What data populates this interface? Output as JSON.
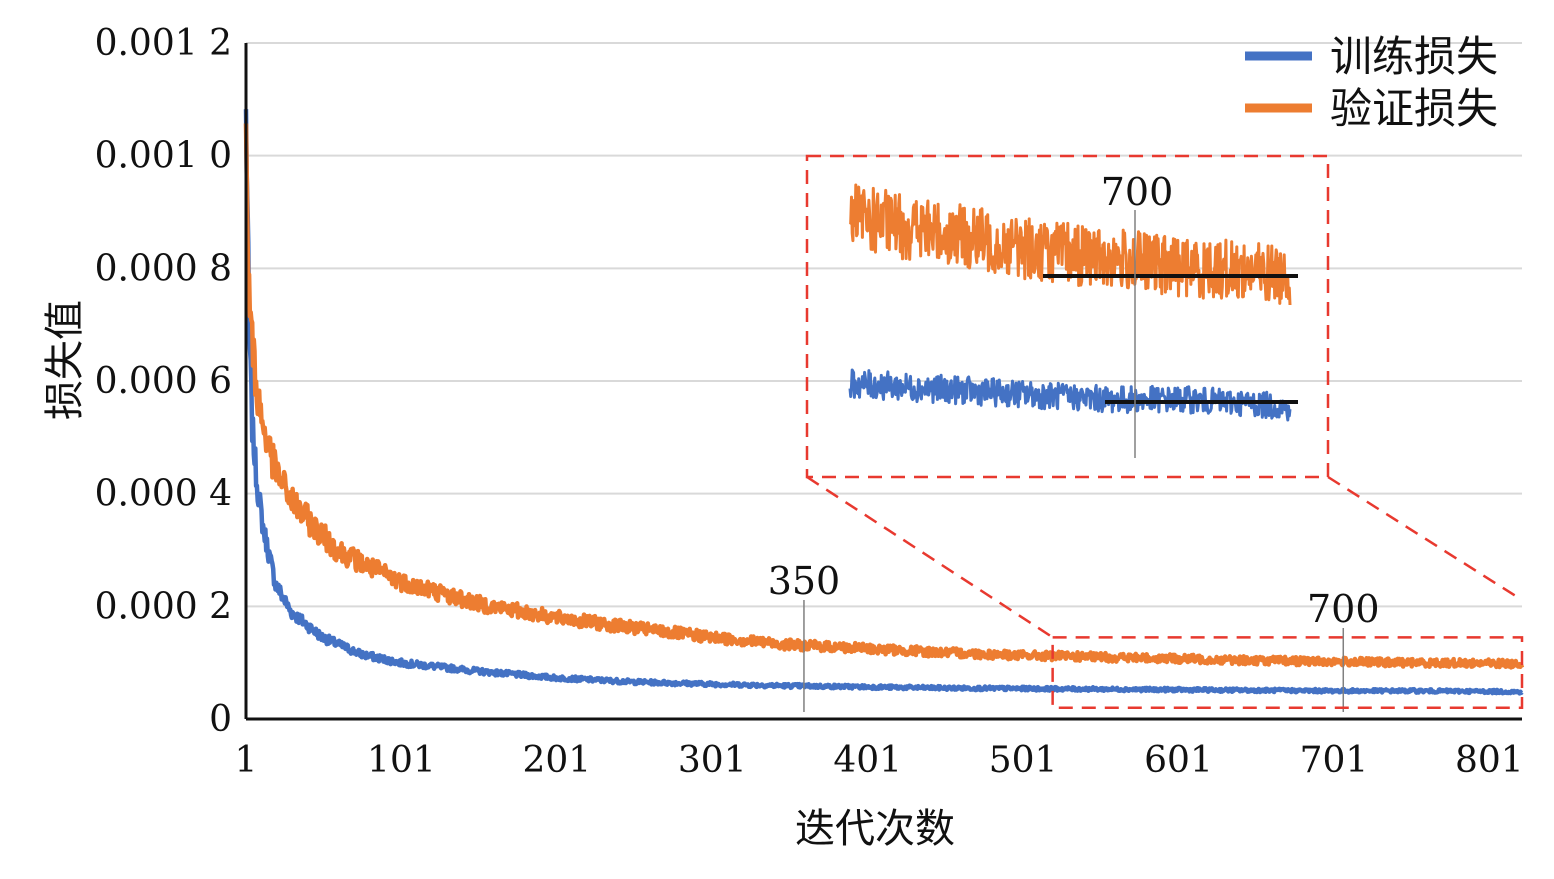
{
  "chart_data": {
    "type": "line",
    "title": "",
    "xlabel": "迭代次数",
    "ylabel": "损失值",
    "xlim": [
      1,
      822
    ],
    "ylim": [
      0,
      0.0012
    ],
    "x_ticks": [
      "1",
      "101",
      "201",
      "301",
      "401",
      "501",
      "601",
      "701",
      "801"
    ],
    "y_ticks": [
      "0",
      "0.000 2",
      "0.000 4",
      "0.000 6",
      "0.000 8",
      "0.001 0",
      "0.001 2"
    ],
    "grid": true,
    "legend_position": "top-right",
    "series": [
      {
        "name": "训练损失",
        "color": "#4472C4",
        "x": [
          1,
          2,
          3,
          5,
          8,
          12,
          20,
          30,
          50,
          75,
          100,
          150,
          200,
          250,
          300,
          350,
          400,
          450,
          500,
          550,
          600,
          650,
          700,
          750,
          800,
          822
        ],
        "y": [
          0.00107,
          0.0009,
          0.0007,
          0.00052,
          0.00042,
          0.00034,
          0.00024,
          0.00019,
          0.000145,
          0.000115,
          0.0001,
          8.5e-05,
          7.3e-05,
          6.6e-05,
          6.2e-05,
          5.9e-05,
          5.7e-05,
          5.5e-05,
          5.4e-05,
          5.3e-05,
          5.2e-05,
          5.1e-05,
          5e-05,
          5e-05,
          4.9e-05,
          4.8e-05
        ]
      },
      {
        "name": "验证损失",
        "color": "#ED7D31",
        "x": [
          1,
          2,
          4,
          8,
          12,
          20,
          30,
          45,
          60,
          80,
          100,
          150,
          200,
          250,
          300,
          350,
          400,
          450,
          500,
          550,
          600,
          650,
          700,
          750,
          800,
          822
        ],
        "y": [
          0.001,
          0.00085,
          0.0007,
          0.00058,
          0.00052,
          0.00044,
          0.00039,
          0.00034,
          0.0003,
          0.00027,
          0.000245,
          0.000205,
          0.00018,
          0.000162,
          0.000145,
          0.000132,
          0.000125,
          0.000118,
          0.000113,
          0.00011,
          0.000107,
          0.000104,
          0.000102,
          0.0001,
          9.9e-05,
          9.8e-05
        ]
      }
    ],
    "annotations": [
      {
        "text": "350",
        "x": 360
      },
      {
        "text": "700",
        "x": 707
      }
    ],
    "inset": {
      "zoom_range_x": [
        520,
        822
      ],
      "zoom_range_y": [
        2e-05,
        0.000145
      ],
      "marker_label": "700"
    }
  }
}
